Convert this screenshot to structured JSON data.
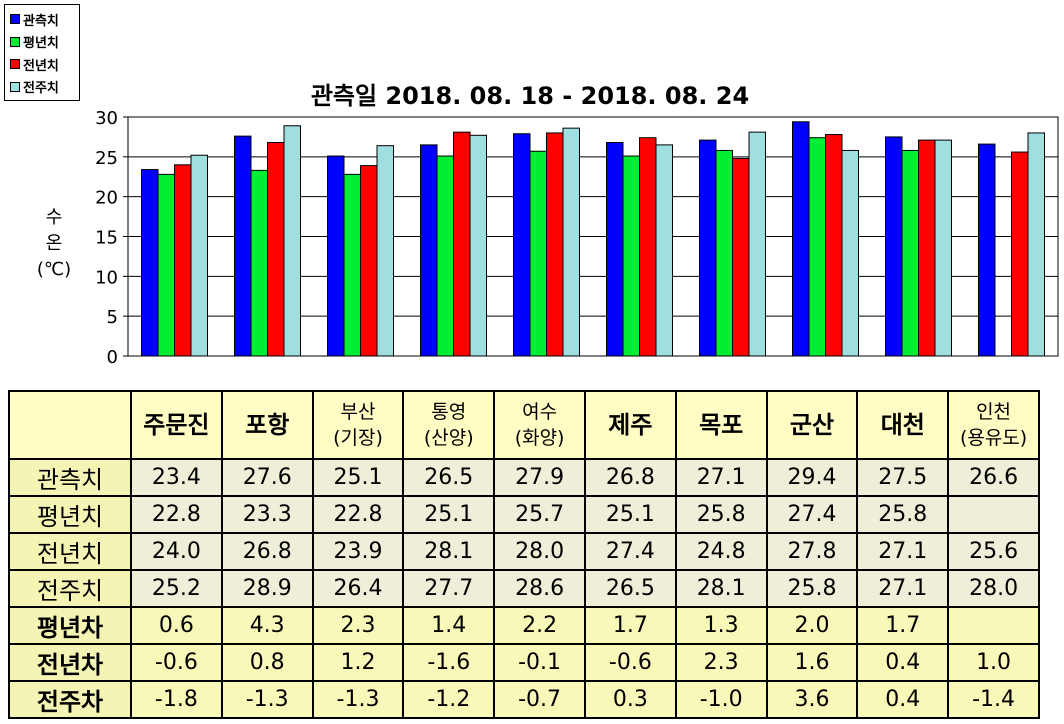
{
  "chart_data": {
    "type": "bar",
    "title": "관측일 2018. 08. 18 - 2018. 08. 24",
    "ylabel": [
      "수",
      "온",
      "(℃)"
    ],
    "ylim": [
      0,
      30
    ],
    "yticks": [
      0,
      5,
      10,
      15,
      20,
      25,
      30
    ],
    "grid": true,
    "legend_position": "top-left",
    "categories": [
      "주문진",
      "포항",
      "부산(기장)",
      "통영(산양)",
      "여수(화양)",
      "제주",
      "목포",
      "군산",
      "대천",
      "인천(용유도)"
    ],
    "series": [
      {
        "name": "관측치",
        "color": "#0000ff",
        "values": [
          23.4,
          27.6,
          25.1,
          26.5,
          27.9,
          26.8,
          27.1,
          29.4,
          27.5,
          26.6
        ]
      },
      {
        "name": "평년치",
        "color": "#00ee33",
        "values": [
          22.8,
          23.3,
          22.8,
          25.1,
          25.7,
          25.1,
          25.8,
          27.4,
          25.8,
          null
        ]
      },
      {
        "name": "전년치",
        "color": "#ff0000",
        "values": [
          24.0,
          26.8,
          23.9,
          28.1,
          28.0,
          27.4,
          24.8,
          27.8,
          27.1,
          25.6
        ]
      },
      {
        "name": "전주치",
        "color": "#9fdfdf",
        "values": [
          25.2,
          28.9,
          26.4,
          27.7,
          28.6,
          26.5,
          28.1,
          25.8,
          27.1,
          28.0
        ]
      }
    ]
  },
  "table": {
    "header": [
      [
        "주문진"
      ],
      [
        "포항"
      ],
      [
        "부산",
        "(기장)"
      ],
      [
        "통영",
        "(산양)"
      ],
      [
        "여수",
        "(화양)"
      ],
      [
        "제주"
      ],
      [
        "목포"
      ],
      [
        "군산"
      ],
      [
        "대천"
      ],
      [
        "인천",
        "(용유도)"
      ]
    ],
    "rows": [
      {
        "label": "관측치",
        "cells": [
          "23.4",
          "27.6",
          "25.1",
          "26.5",
          "27.9",
          "26.8",
          "27.1",
          "29.4",
          "27.5",
          "26.6"
        ]
      },
      {
        "label": "평년치",
        "cells": [
          "22.8",
          "23.3",
          "22.8",
          "25.1",
          "25.7",
          "25.1",
          "25.8",
          "27.4",
          "25.8",
          ""
        ]
      },
      {
        "label": "전년치",
        "cells": [
          "24.0",
          "26.8",
          "23.9",
          "28.1",
          "28.0",
          "27.4",
          "24.8",
          "27.8",
          "27.1",
          "25.6"
        ]
      },
      {
        "label": "전주치",
        "cells": [
          "25.2",
          "28.9",
          "26.4",
          "27.7",
          "28.6",
          "26.5",
          "28.1",
          "25.8",
          "27.1",
          "28.0"
        ]
      },
      {
        "label": "평년차",
        "cells": [
          "0.6",
          "4.3",
          "2.3",
          "1.4",
          "2.2",
          "1.7",
          "1.3",
          "2.0",
          "1.7",
          ""
        ]
      },
      {
        "label": "전년차",
        "cells": [
          "-0.6",
          "0.8",
          "1.2",
          "-1.6",
          "-0.1",
          "-0.6",
          "2.3",
          "1.6",
          "0.4",
          "1.0"
        ]
      },
      {
        "label": "전주차",
        "cells": [
          "-1.8",
          "-1.3",
          "-1.3",
          "-1.2",
          "-0.7",
          "0.3",
          "-1.0",
          "3.6",
          "0.4",
          "-1.4"
        ]
      }
    ]
  }
}
